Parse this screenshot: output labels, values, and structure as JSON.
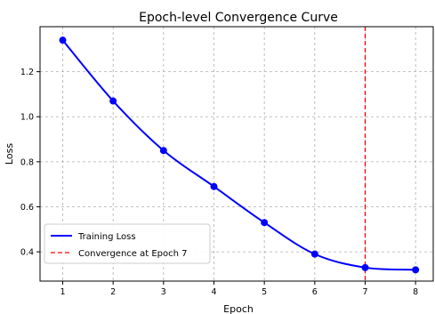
{
  "chart_data": {
    "type": "line",
    "title": "Epoch-level Convergence Curve",
    "xlabel": "Epoch",
    "ylabel": "Loss",
    "xlim": [
      0.55,
      8.35
    ],
    "ylim": [
      0.27,
      1.4
    ],
    "xticks": [
      1,
      2,
      3,
      4,
      5,
      6,
      7,
      8
    ],
    "yticks": [
      0.4,
      0.6,
      0.8,
      1.0,
      1.2
    ],
    "ytick_labels": [
      "0.4",
      "0.6",
      "0.8",
      "1.0",
      "1.2"
    ],
    "grid": true,
    "series": [
      {
        "name": "Training Loss",
        "color": "#0000ff",
        "marker": "circle",
        "smooth": true,
        "x": [
          1,
          2,
          3,
          4,
          5,
          6,
          7,
          8
        ],
        "y": [
          1.34,
          1.07,
          0.85,
          0.69,
          0.53,
          0.39,
          0.33,
          0.32
        ]
      }
    ],
    "vline": {
      "name": "Convergence at Epoch 7",
      "x": 7,
      "color": "#ff0000",
      "style": "dashed"
    },
    "legend": {
      "position": "lower-left",
      "entries": [
        "Training Loss",
        "Convergence at Epoch 7"
      ]
    }
  }
}
